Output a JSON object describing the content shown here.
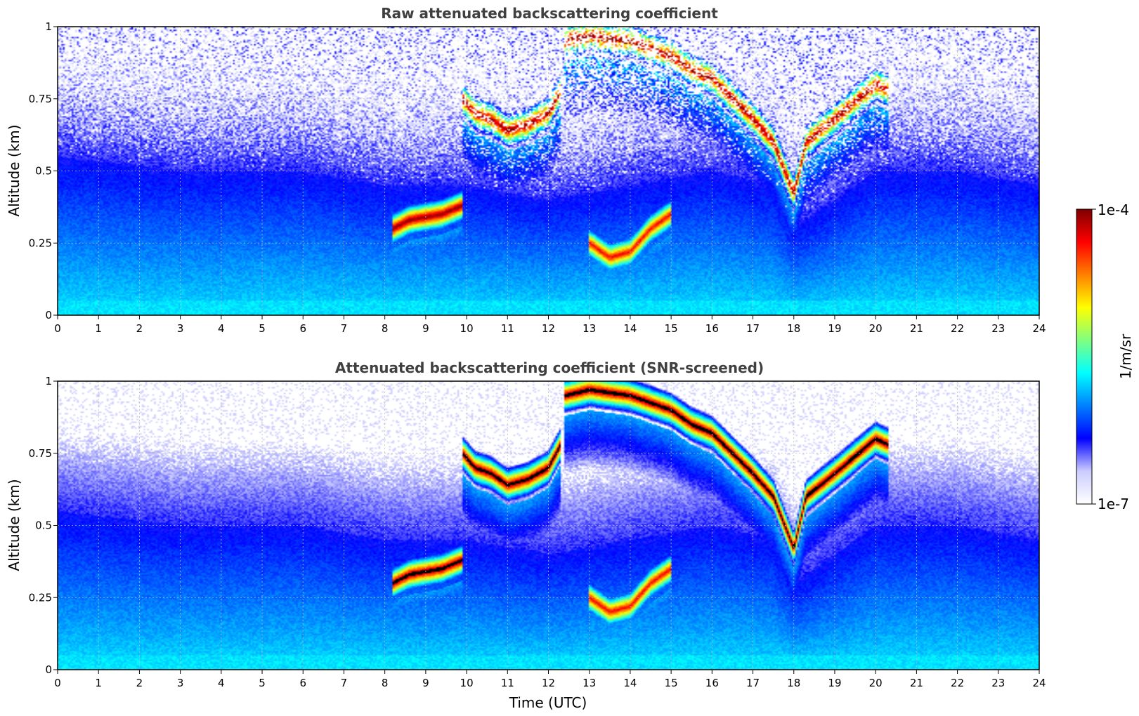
{
  "colors": {
    "cmap": [
      "#ffffff",
      "#ccccff",
      "#0000ff",
      "#0080ff",
      "#00ffff",
      "#80ff80",
      "#ffff00",
      "#ff8000",
      "#ff0000",
      "#800000"
    ],
    "masked": "#000000",
    "grid": "#bbbbbb"
  },
  "colorbar": {
    "max_label": "1e-4",
    "min_label": "1e-7",
    "unit_label": "1/m/sr",
    "scale": "log",
    "range": [
      1e-07,
      0.0001
    ]
  },
  "chart_data": [
    {
      "type": "heatmap",
      "title": "Raw attenuated backscattering coefficient",
      "xlabel": "",
      "ylabel": "Altitude (km)",
      "xlim": [
        0,
        24
      ],
      "ylim": [
        0,
        1
      ],
      "x_ticks": [
        "0",
        "1",
        "2",
        "3",
        "4",
        "5",
        "6",
        "7",
        "8",
        "9",
        "10",
        "11",
        "12",
        "13",
        "14",
        "15",
        "16",
        "17",
        "18",
        "19",
        "20",
        "21",
        "22",
        "23",
        "24"
      ],
      "y_ticks": [
        "0",
        "0.25",
        "0.5",
        "0.75",
        "1"
      ],
      "grid": true,
      "noise": "raw",
      "features": {
        "cloud_layer": {
          "x": [
            9.9,
            10.2,
            10.6,
            11.0,
            11.5,
            12.0,
            12.3
          ],
          "y": [
            0.75,
            0.7,
            0.68,
            0.64,
            0.66,
            0.7,
            0.78
          ],
          "level": 1.0
        },
        "low_cloud": {
          "x": [
            8.2,
            8.6,
            9.0,
            9.4,
            9.9
          ],
          "y": [
            0.3,
            0.33,
            0.34,
            0.35,
            0.38
          ],
          "level": 1.0
        },
        "high_cloud": {
          "x": [
            12.4,
            13.0,
            14.0,
            15.0,
            15.5,
            16.0,
            17.0,
            17.5,
            18.0
          ],
          "y": [
            0.95,
            0.97,
            0.95,
            0.9,
            0.85,
            0.82,
            0.68,
            0.6,
            0.42
          ],
          "level": 1.0
        },
        "rising_cloud": {
          "x": [
            18.0,
            18.3,
            19.0,
            19.5,
            20.0,
            20.3
          ],
          "y": [
            0.42,
            0.6,
            0.68,
            0.74,
            0.8,
            0.78
          ],
          "level": 1.0
        },
        "mid_cloud": {
          "x": [
            13.0,
            13.5,
            14.0,
            14.5,
            15.0
          ],
          "y": [
            0.25,
            0.2,
            0.22,
            0.3,
            0.35
          ],
          "level": 0.9
        },
        "boundary_layer_top": {
          "x": [
            0,
            3,
            6,
            8,
            10,
            12,
            16,
            17.5,
            18,
            20,
            22,
            24
          ],
          "y": [
            0.55,
            0.5,
            0.5,
            0.45,
            0.45,
            0.4,
            0.5,
            0.45,
            0.3,
            0.5,
            0.5,
            0.45
          ]
        }
      }
    },
    {
      "type": "heatmap",
      "title": "Attenuated backscattering coefficient (SNR-screened)",
      "xlabel": "Time (UTC)",
      "ylabel": "Altitude (km)",
      "xlim": [
        0,
        24
      ],
      "ylim": [
        0,
        1
      ],
      "x_ticks": [
        "0",
        "1",
        "2",
        "3",
        "4",
        "5",
        "6",
        "7",
        "8",
        "9",
        "10",
        "11",
        "12",
        "13",
        "14",
        "15",
        "16",
        "17",
        "18",
        "19",
        "20",
        "21",
        "22",
        "23",
        "24"
      ],
      "y_ticks": [
        "0",
        "0.25",
        "0.5",
        "0.75",
        "1"
      ],
      "grid": true,
      "noise": "screened",
      "features": {
        "cloud_layer": {
          "x": [
            9.9,
            10.2,
            10.6,
            11.0,
            11.5,
            12.0,
            12.3
          ],
          "y": [
            0.75,
            0.7,
            0.68,
            0.64,
            0.66,
            0.7,
            0.78
          ],
          "level": 1.0
        },
        "low_cloud": {
          "x": [
            8.2,
            8.6,
            9.0,
            9.4,
            9.9
          ],
          "y": [
            0.3,
            0.33,
            0.34,
            0.35,
            0.38
          ],
          "level": 1.0
        },
        "high_cloud": {
          "x": [
            12.4,
            13.0,
            14.0,
            15.0,
            15.5,
            16.0,
            17.0,
            17.5,
            18.0
          ],
          "y": [
            0.95,
            0.97,
            0.95,
            0.9,
            0.85,
            0.82,
            0.68,
            0.6,
            0.42
          ],
          "level": 1.0
        },
        "rising_cloud": {
          "x": [
            18.0,
            18.3,
            19.0,
            19.5,
            20.0,
            20.3
          ],
          "y": [
            0.42,
            0.6,
            0.68,
            0.74,
            0.8,
            0.78
          ],
          "level": 1.0
        },
        "mid_cloud": {
          "x": [
            13.0,
            13.5,
            14.0,
            14.5,
            15.0
          ],
          "y": [
            0.25,
            0.2,
            0.22,
            0.3,
            0.35
          ],
          "level": 0.9
        },
        "boundary_layer_top": {
          "x": [
            0,
            3,
            6,
            8,
            10,
            12,
            16,
            17.5,
            18,
            20,
            22,
            24
          ],
          "y": [
            0.55,
            0.5,
            0.5,
            0.45,
            0.45,
            0.4,
            0.5,
            0.45,
            0.3,
            0.5,
            0.5,
            0.45
          ]
        }
      }
    }
  ]
}
